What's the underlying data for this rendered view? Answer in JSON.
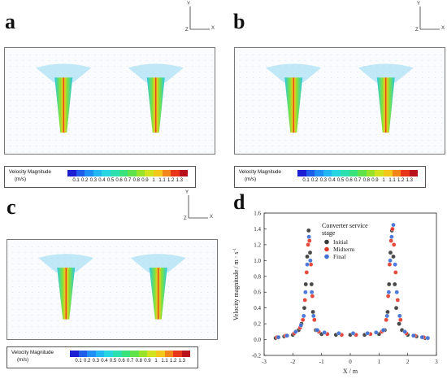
{
  "panels": [
    {
      "letter": "a"
    },
    {
      "letter": "b"
    },
    {
      "letter": "c"
    },
    {
      "letter": "d"
    }
  ],
  "coord_axes": {
    "y": "Y",
    "x": "X",
    "z": "Z"
  },
  "legend": {
    "title": "Velocity Magnitude",
    "unit": "(m/s)",
    "ticks": [
      "0.1",
      "0.2",
      "0.3",
      "0.4",
      "0.5",
      "0.6",
      "0.7",
      "0.8",
      "0.9",
      "1",
      "1.1",
      "1.2",
      "1.3"
    ],
    "colors": [
      "#1c1fd1",
      "#1f5ce8",
      "#1f8ef5",
      "#22b6f2",
      "#27d6e0",
      "#2ee0b0",
      "#3ae27e",
      "#5fe24a",
      "#9be32b",
      "#d2e21f",
      "#f3c81d",
      "#f3861b",
      "#e8361a",
      "#b8121c"
    ]
  },
  "chart_data": {
    "type": "scatter",
    "title": "",
    "xlabel": "X / m",
    "ylabel": "Velocity magnitude / m · s",
    "ylabel_sup": "-1",
    "xlim": [
      -3,
      3
    ],
    "ylim": [
      -0.2,
      1.6
    ],
    "xticks": [
      -3,
      -2,
      -1,
      0,
      1,
      2,
      3
    ],
    "xtick_labels": [
      "-3",
      "-2",
      "-1",
      "0",
      "1",
      "2",
      "3"
    ],
    "yticks": [
      -0.2,
      0.0,
      0.2,
      0.4,
      0.6,
      0.8,
      1.0,
      1.2,
      1.4,
      1.6
    ],
    "ytick_labels": [
      "-0.2",
      "0.0",
      "0.2",
      "0.4",
      "0.6",
      "0.8",
      "1.0",
      "1.2",
      "1.4",
      "1.6"
    ],
    "legend_title": "Converter service\nstage",
    "legend_placement": "top-center",
    "series": [
      {
        "name": "Initial",
        "color": "#3a3a3a",
        "x": [
          -2.6,
          -2.3,
          -2.0,
          -1.8,
          -1.7,
          -1.6,
          -1.55,
          -1.5,
          -1.45,
          -1.4,
          -1.35,
          -1.3,
          -1.2,
          -1.0,
          -0.5,
          0,
          0.5,
          1.0,
          1.2,
          1.3,
          1.35,
          1.4,
          1.45,
          1.5,
          1.55,
          1.6,
          1.7,
          1.8,
          2.0,
          2.3,
          2.6
        ],
        "y": [
          0.02,
          0.04,
          0.06,
          0.12,
          0.2,
          0.4,
          0.7,
          1.05,
          1.38,
          1.1,
          0.7,
          0.35,
          0.12,
          0.07,
          0.06,
          0.06,
          0.06,
          0.07,
          0.12,
          0.35,
          0.7,
          1.1,
          1.38,
          1.05,
          0.7,
          0.4,
          0.2,
          0.12,
          0.06,
          0.04,
          0.02
        ]
      },
      {
        "name": "Midterm",
        "color": "#e23b2e",
        "x": [
          -2.55,
          -2.25,
          -1.95,
          -1.75,
          -1.65,
          -1.58,
          -1.52,
          -1.47,
          -1.42,
          -1.37,
          -1.32,
          -1.25,
          -1.1,
          -0.8,
          -0.3,
          0.2,
          0.7,
          1.1,
          1.25,
          1.32,
          1.37,
          1.42,
          1.47,
          1.52,
          1.58,
          1.65,
          1.75,
          1.95,
          2.25,
          2.55
        ],
        "y": [
          0.03,
          0.05,
          0.08,
          0.15,
          0.25,
          0.5,
          0.85,
          1.2,
          1.25,
          0.95,
          0.55,
          0.25,
          0.1,
          0.07,
          0.06,
          0.06,
          0.07,
          0.1,
          0.25,
          0.55,
          0.95,
          1.25,
          1.4,
          1.2,
          0.85,
          0.5,
          0.25,
          0.08,
          0.05,
          0.03
        ]
      },
      {
        "name": "Final",
        "color": "#3f6fd6",
        "x": [
          -2.5,
          -2.2,
          -1.9,
          -1.72,
          -1.62,
          -1.56,
          -1.5,
          -1.44,
          -1.39,
          -1.34,
          -1.28,
          -1.15,
          -0.9,
          -0.4,
          0.1,
          0.6,
          0.9,
          1.15,
          1.28,
          1.34,
          1.39,
          1.44,
          1.5,
          1.56,
          1.62,
          1.72,
          1.9,
          2.2,
          2.5,
          2.7
        ],
        "y": [
          0.03,
          0.05,
          0.1,
          0.18,
          0.3,
          0.6,
          0.95,
          1.3,
          1.0,
          0.6,
          0.3,
          0.12,
          0.09,
          0.08,
          0.08,
          0.08,
          0.09,
          0.12,
          0.3,
          0.6,
          1.0,
          1.3,
          1.45,
          0.95,
          0.6,
          0.3,
          0.1,
          0.05,
          0.03,
          0.02
        ]
      }
    ]
  }
}
